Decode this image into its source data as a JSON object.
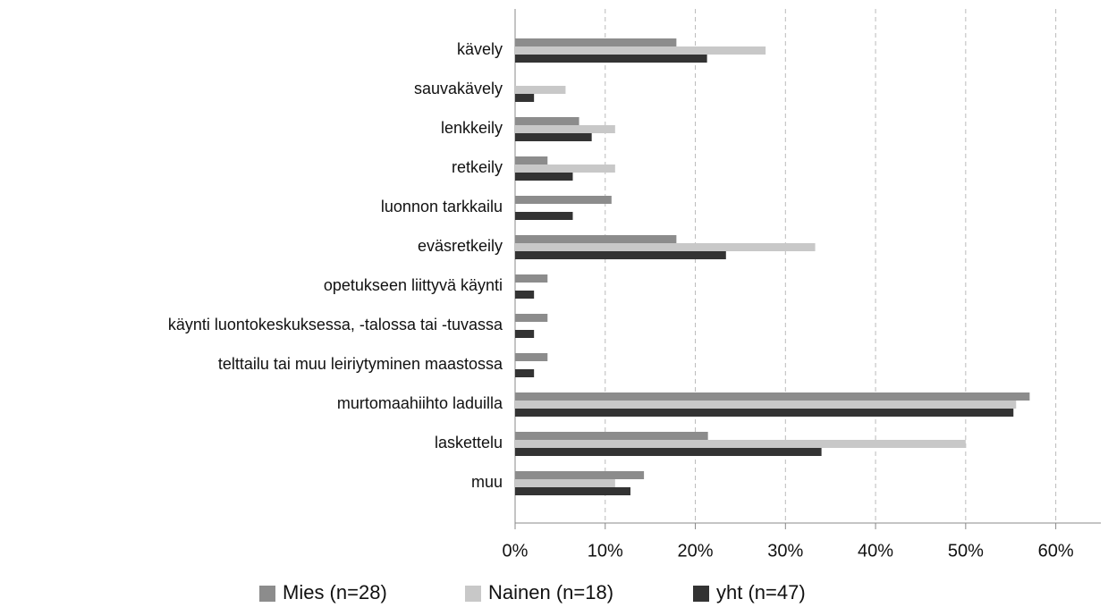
{
  "chart_data": {
    "type": "hbar",
    "categories": [
      "kävely",
      "sauvakävely",
      "lenkkeily",
      "retkeily",
      "luonnon tarkkailu",
      "eväsretkeily",
      "opetukseen liittyvä käynti",
      "käynti luontokeskuksessa, -talossa tai -tuvassa",
      "telttailu tai muu leiriytyminen maastossa",
      "murtomaahiihto laduilla",
      "laskettelu",
      "muu"
    ],
    "series": [
      {
        "name": "Mies (n=28)",
        "color": "#8c8c8c",
        "values": [
          17.9,
          0,
          7.1,
          3.6,
          10.7,
          17.9,
          3.6,
          3.6,
          3.6,
          57.1,
          21.4,
          14.3
        ]
      },
      {
        "name": "Nainen (n=18)",
        "color": "#c8c8c8",
        "values": [
          27.8,
          5.6,
          11.1,
          11.1,
          0,
          33.3,
          0,
          0,
          0,
          55.6,
          50,
          11.1
        ]
      },
      {
        "name": "yht (n=47)",
        "color": "#333333",
        "values": [
          21.3,
          2.1,
          8.5,
          6.4,
          6.4,
          23.4,
          2.1,
          2.1,
          2.1,
          55.3,
          34,
          12.8
        ]
      }
    ],
    "xlim": [
      0,
      65
    ],
    "xticks": [
      {
        "value": 0,
        "label": "0%"
      },
      {
        "value": 10,
        "label": "10%"
      },
      {
        "value": 20,
        "label": "20%"
      },
      {
        "value": 30,
        "label": "30%"
      },
      {
        "value": 40,
        "label": "40%"
      },
      {
        "value": 50,
        "label": "50%"
      },
      {
        "value": 60,
        "label": "60%"
      }
    ],
    "grid": true,
    "legend": "bottom"
  }
}
